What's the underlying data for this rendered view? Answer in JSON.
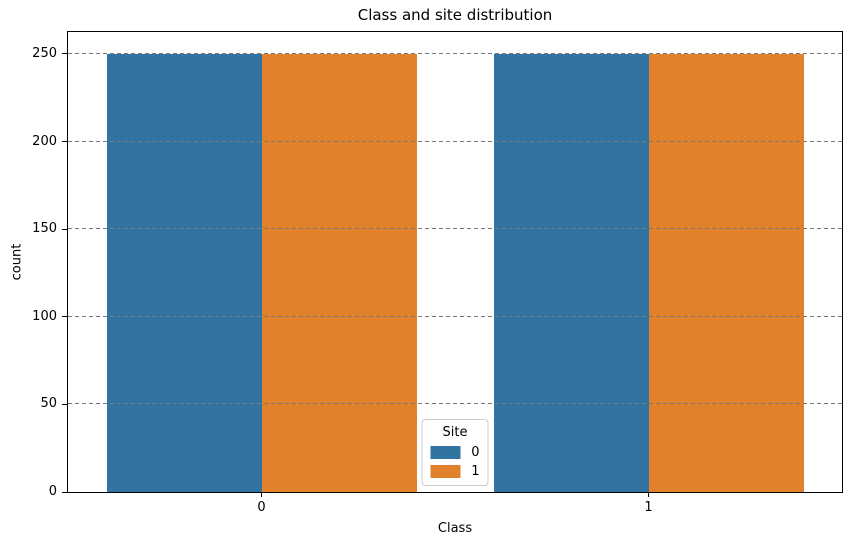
{
  "chart_data": {
    "type": "bar",
    "title": "Class and site distribution",
    "xlabel": "Class",
    "ylabel": "count",
    "categories": [
      "0",
      "1"
    ],
    "series": [
      {
        "name": "0",
        "color": "#3274a1",
        "values": [
          250,
          250
        ]
      },
      {
        "name": "1",
        "color": "#e1812c",
        "values": [
          250,
          250
        ]
      }
    ],
    "legend": {
      "title": "Site",
      "position": "lower center"
    },
    "ylim": [
      0,
      262.5
    ],
    "yticks": [
      0,
      50,
      100,
      150,
      200,
      250
    ],
    "xlim": [
      -0.5,
      1.5
    ],
    "grid": {
      "axis": "y",
      "linestyle": "dashed",
      "color": "#7a7a7a"
    }
  }
}
